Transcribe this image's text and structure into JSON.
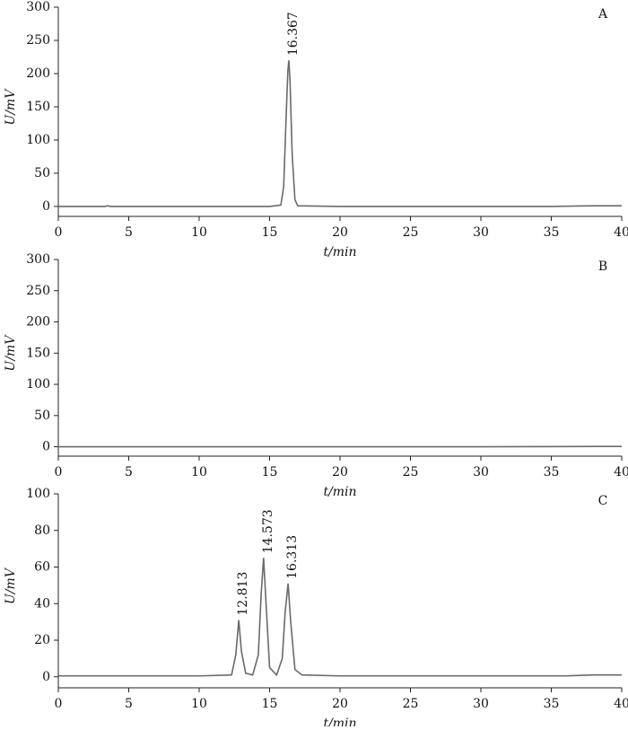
{
  "chart_data": [
    {
      "type": "line",
      "panel_label": "A",
      "xlabel": "t/min",
      "ylabel": "U/mV",
      "color": "#6a6a6a",
      "x": [
        0,
        3.3,
        3.5,
        3.7,
        5,
        10,
        15,
        15.8,
        16.0,
        16.2,
        16.3,
        16.367,
        16.45,
        16.6,
        16.8,
        17,
        20,
        25,
        30,
        35,
        38,
        40
      ],
      "values": [
        0,
        0,
        1,
        0,
        0,
        0,
        0,
        2,
        30,
        150,
        205,
        220,
        190,
        80,
        10,
        1,
        0,
        0,
        0,
        0,
        1,
        1
      ],
      "xlim": [
        0,
        40
      ],
      "xticks": [
        0,
        5,
        10,
        15,
        20,
        25,
        30,
        35,
        40
      ],
      "ylim": [
        -15,
        300
      ],
      "yticks": [
        0,
        50,
        100,
        150,
        200,
        250,
        300
      ],
      "annotations": [
        {
          "text": "16.367",
          "x": 16.367,
          "y": 220
        }
      ]
    },
    {
      "type": "line",
      "panel_label": "B",
      "xlabel": "t/min",
      "ylabel": "U/mV",
      "color": "#6a6a6a",
      "x": [
        0,
        10,
        20,
        30,
        38,
        40
      ],
      "values": [
        0,
        0,
        0,
        0,
        0.5,
        0.5
      ],
      "xlim": [
        0,
        40
      ],
      "xticks": [
        0,
        5,
        10,
        15,
        20,
        25,
        30,
        35,
        40
      ],
      "ylim": [
        -15,
        300
      ],
      "yticks": [
        0,
        50,
        100,
        150,
        200,
        250,
        300
      ],
      "annotations": []
    },
    {
      "type": "line",
      "panel_label": "C",
      "xlabel": "t/min",
      "ylabel": "U/mV",
      "color": "#6a6a6a",
      "x": [
        0,
        5,
        10,
        12.3,
        12.6,
        12.813,
        13.0,
        13.3,
        13.8,
        14.2,
        14.4,
        14.573,
        14.75,
        15.0,
        15.5,
        15.9,
        16.1,
        16.313,
        16.5,
        16.8,
        17.3,
        20,
        30,
        36,
        38,
        40
      ],
      "values": [
        0.5,
        0.5,
        0.5,
        1,
        12,
        31,
        14,
        2,
        1,
        12,
        45,
        65,
        40,
        5,
        1,
        10,
        35,
        51,
        30,
        4,
        1,
        0.5,
        0.5,
        0.5,
        1,
        1
      ],
      "xlim": [
        0,
        40
      ],
      "xticks": [
        0,
        5,
        10,
        15,
        20,
        25,
        30,
        35,
        40
      ],
      "ylim": [
        -6,
        100
      ],
      "yticks": [
        0,
        20,
        40,
        60,
        80,
        100
      ],
      "annotations": [
        {
          "text": "12.813",
          "x": 12.813,
          "y": 31
        },
        {
          "text": "14.573",
          "x": 14.573,
          "y": 65
        },
        {
          "text": "16.313",
          "x": 16.313,
          "y": 51
        }
      ]
    }
  ]
}
